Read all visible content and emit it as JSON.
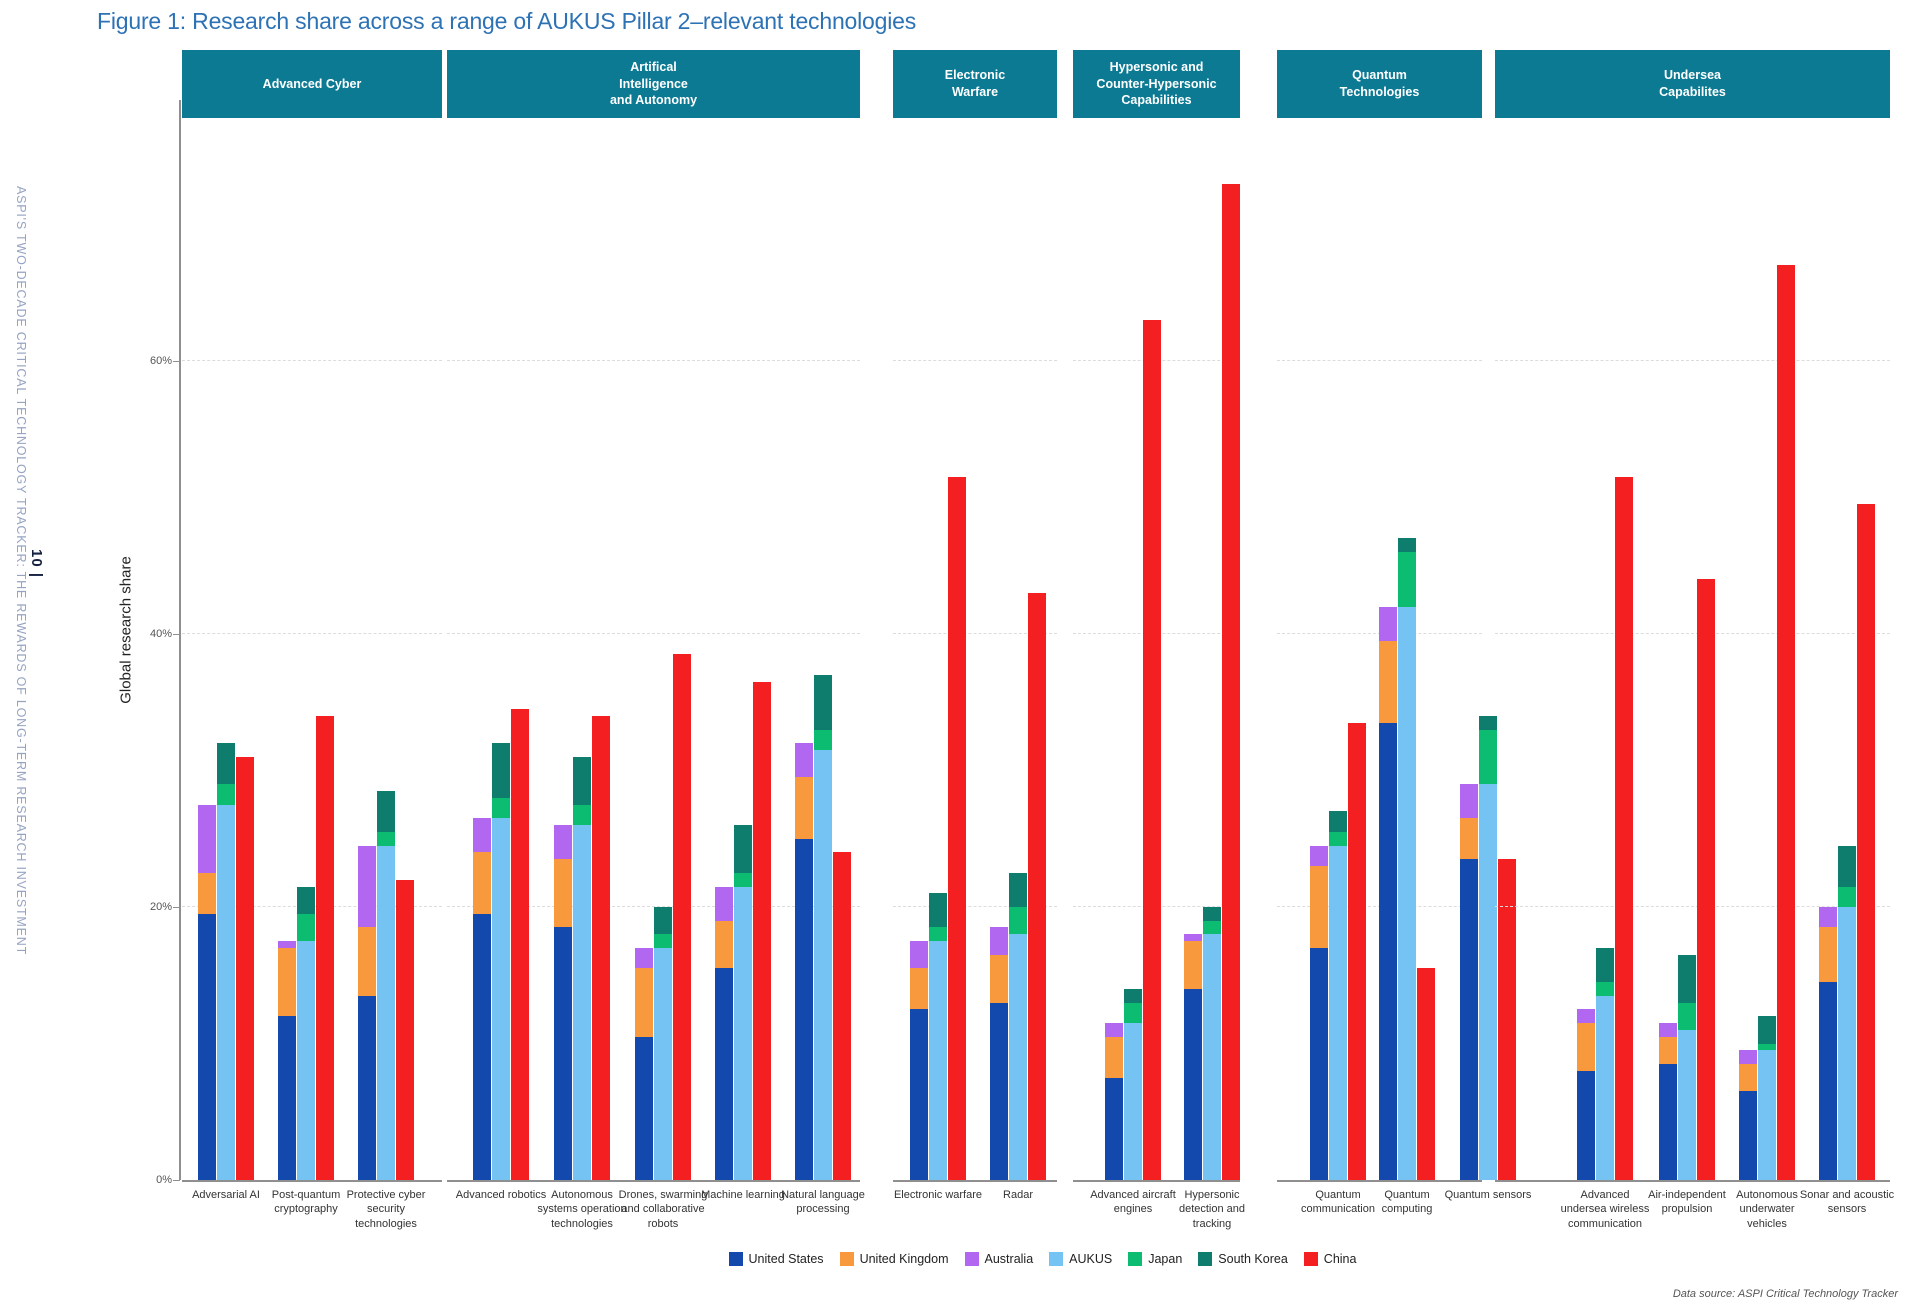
{
  "page": {
    "sidebar_page_number": "10 |",
    "sidebar_text": "ASPI'S TWO-DECADE CRITICAL TECHNOLOGY TRACKER: THE REWARDS OF LONG-TERM RESEARCH INVESTMENT",
    "title": "Figure 1:  Research share across a range of AUKUS Pillar 2–relevant technologies",
    "source_note": "Data source: ASPI Critical Technology Tracker"
  },
  "chart_data": {
    "type": "bar",
    "title": "Figure 1:  Research share across a range of AUKUS Pillar 2–relevant technologies",
    "ylabel": "Global research share",
    "ylim": [
      0,
      77
    ],
    "grid": "horizontal dashed at 20/40/60, per group panel",
    "legend_position": "bottom",
    "y_axis": {
      "label": "Global research share",
      "ticks": [
        {
          "label": "0%",
          "value": 0
        },
        {
          "label": "20%",
          "value": 20
        },
        {
          "label": "40%",
          "value": 40
        },
        {
          "label": "60%",
          "value": 60
        }
      ]
    },
    "legend": [
      "United States",
      "United Kingdom",
      "Australia",
      "AUKUS",
      "Japan",
      "South Korea",
      "China"
    ],
    "series_colors": {
      "United States": "#1349ac",
      "United Kingdom": "#f8993e",
      "Australia": "#b267f0",
      "AUKUS": "#74c3f2",
      "Japan": "#0cbd71",
      "South Korea": "#0f7d6e",
      "China": "#f41f20"
    },
    "bar_composition": [
      [
        "United States",
        "United Kingdom",
        "Australia"
      ],
      [
        "AUKUS",
        "Japan",
        "South Korea"
      ],
      [
        "China"
      ]
    ],
    "groups": [
      {
        "label": "Advanced Cyber",
        "technologies": [
          {
            "label": "Adversarial AI",
            "values": {
              "United States": 19.5,
              "United Kingdom": 3,
              "Australia": 5,
              "AUKUS": 27.5,
              "Japan": 1.5,
              "South Korea": 3,
              "China": 31
            }
          },
          {
            "label": "Post-quantum cryptography",
            "values": {
              "United States": 12,
              "United Kingdom": 5,
              "Australia": 0.5,
              "AUKUS": 17.5,
              "Japan": 2,
              "South Korea": 2,
              "China": 34
            }
          },
          {
            "label": "Protective cyber security technologies",
            "values": {
              "United States": 13.5,
              "United Kingdom": 5,
              "Australia": 6,
              "AUKUS": 24.5,
              "Japan": 1,
              "South Korea": 3,
              "China": 22
            }
          }
        ]
      },
      {
        "label": "Artifical\nIntelligence\nand Autonomy",
        "technologies": [
          {
            "label": "Advanced robotics",
            "values": {
              "United States": 19.5,
              "United Kingdom": 4.5,
              "Australia": 2.5,
              "AUKUS": 26.5,
              "Japan": 1.5,
              "South Korea": 4,
              "China": 34.5
            }
          },
          {
            "label": "Autonomous systems operation technologies",
            "values": {
              "United States": 18.5,
              "United Kingdom": 5,
              "Australia": 2.5,
              "AUKUS": 26,
              "Japan": 1.5,
              "South Korea": 3.5,
              "China": 34
            }
          },
          {
            "label": "Drones, swarming and collaborative robots",
            "values": {
              "United States": 10.5,
              "United Kingdom": 5,
              "Australia": 1.5,
              "AUKUS": 17,
              "Japan": 1,
              "South Korea": 2,
              "China": 38.5
            }
          },
          {
            "label": "Machine learning",
            "values": {
              "United States": 15.5,
              "United Kingdom": 3.5,
              "Australia": 2.5,
              "AUKUS": 21.5,
              "Japan": 1,
              "South Korea": 3.5,
              "China": 36.5
            }
          },
          {
            "label": "Natural language processing",
            "values": {
              "United States": 25,
              "United Kingdom": 4.5,
              "Australia": 2.5,
              "AUKUS": 31.5,
              "Japan": 1.5,
              "South Korea": 4,
              "China": 24
            }
          }
        ]
      },
      {
        "label": "Electronic\nWarfare",
        "technologies": [
          {
            "label": "Electronic warfare",
            "values": {
              "United States": 12.5,
              "United Kingdom": 3,
              "Australia": 2,
              "AUKUS": 17.5,
              "Japan": 1,
              "South Korea": 2.5,
              "China": 51.5
            }
          },
          {
            "label": "Radar",
            "values": {
              "United States": 13,
              "United Kingdom": 3.5,
              "Australia": 2,
              "AUKUS": 18,
              "Japan": 2,
              "South Korea": 2.5,
              "China": 43
            }
          }
        ]
      },
      {
        "label": "Hypersonic and\nCounter-Hypersonic\nCapabilities",
        "technologies": [
          {
            "label": "Advanced aircraft engines",
            "values": {
              "United States": 7.5,
              "United Kingdom": 3,
              "Australia": 1,
              "AUKUS": 11.5,
              "Japan": 1.5,
              "South Korea": 1,
              "China": 63
            }
          },
          {
            "label": "Hypersonic detection and tracking",
            "values": {
              "United States": 14,
              "United Kingdom": 3.5,
              "Australia": 0.5,
              "AUKUS": 18,
              "Japan": 1,
              "South Korea": 1,
              "China": 73
            }
          }
        ]
      },
      {
        "label": "Quantum\nTechnologies",
        "technologies": [
          {
            "label": "Quantum communication",
            "values": {
              "United States": 17,
              "United Kingdom": 6,
              "Australia": 1.5,
              "AUKUS": 24.5,
              "Japan": 1,
              "South Korea": 1.5,
              "China": 33.5
            }
          },
          {
            "label": "Quantum computing",
            "values": {
              "United States": 33.5,
              "United Kingdom": 6,
              "Australia": 2.5,
              "AUKUS": 42,
              "Japan": 4,
              "South Korea": 1,
              "China": 15.5
            }
          },
          {
            "label": "Quantum sensors",
            "values": {
              "United States": 23.5,
              "United Kingdom": 3,
              "Australia": 2.5,
              "AUKUS": 29,
              "Japan": 4,
              "South Korea": 1,
              "China": 23.5
            }
          }
        ]
      },
      {
        "label": "Undersea\nCapabilites",
        "technologies": [
          {
            "label": "Advanced undersea wireless communication",
            "values": {
              "United States": 8,
              "United Kingdom": 3.5,
              "Australia": 1,
              "AUKUS": 13.5,
              "Japan": 1,
              "South Korea": 2.5,
              "China": 51.5
            }
          },
          {
            "label": "Air-independent propulsion",
            "values": {
              "United States": 8.5,
              "United Kingdom": 2,
              "Australia": 1,
              "AUKUS": 11,
              "Japan": 2,
              "South Korea": 3.5,
              "China": 44
            }
          },
          {
            "label": "Autonomous underwater vehicles",
            "values": {
              "United States": 6.5,
              "United Kingdom": 2,
              "Australia": 1,
              "AUKUS": 9.5,
              "Japan": 0.5,
              "South Korea": 2,
              "China": 67
            }
          },
          {
            "label": "Sonar and acoustic sensors",
            "values": {
              "United States": 14.5,
              "United Kingdom": 4,
              "Australia": 1.5,
              "AUKUS": 20,
              "Japan": 1.5,
              "South Korea": 3,
              "China": 49.5
            }
          }
        ]
      }
    ]
  }
}
